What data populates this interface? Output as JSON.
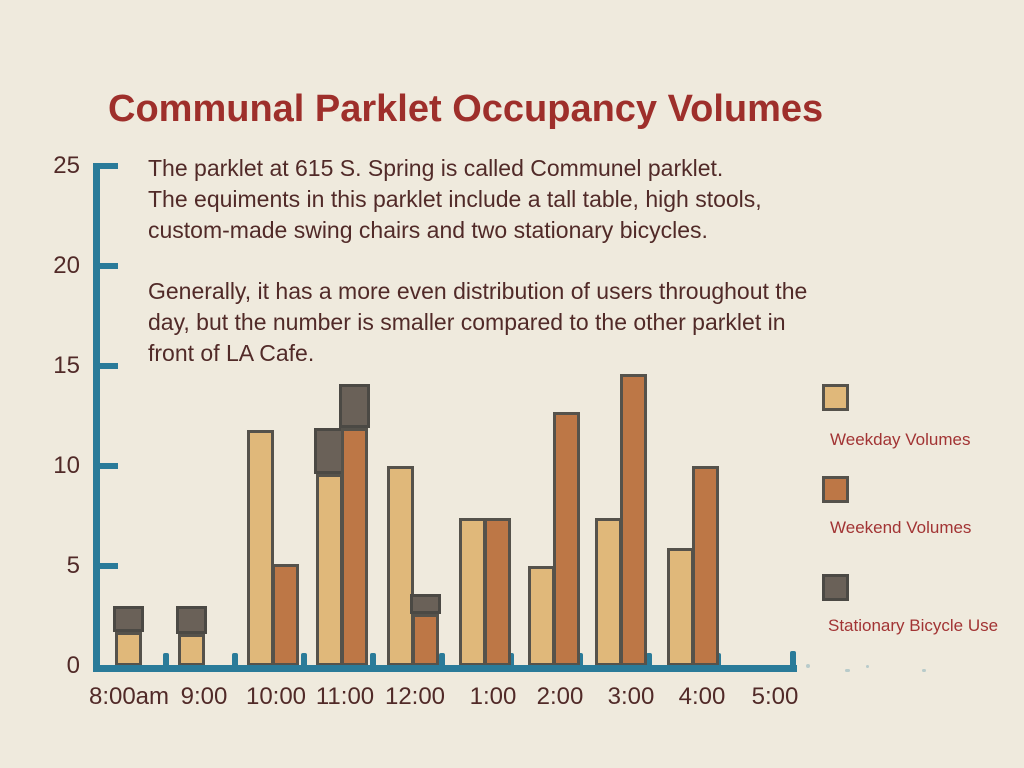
{
  "page": {
    "title": "Communal Parklet Occupancy Volumes",
    "background_color": "#efeadd",
    "title_color": "#9e2f2b"
  },
  "intro": {
    "lines": [
      "The parklet at 615 S. Spring is called Communel parklet.",
      "The equiments in this parklet include a tall table, high stools,",
      "custom-made swing chairs and two stationary bicycles."
    ]
  },
  "note": {
    "lines": [
      "Generally, it has a more even distribution of users throughout the",
      "day, but the number is smaller compared to the other parklet in",
      "front of LA Cafe."
    ]
  },
  "legend": {
    "label_color": "#a23434",
    "items": [
      {
        "label": "Weekday Volumes",
        "color": "#e0b87a",
        "border": "#55524b"
      },
      {
        "label": "Weekend Volumes",
        "color": "#bd7746",
        "border": "#55524b"
      },
      {
        "label": "Stationary Bicycle Use",
        "color": "#6a6158",
        "border": "#4b4944"
      }
    ]
  },
  "axis": {
    "color": "#2a7b99",
    "tick_label_color": "#512a28"
  },
  "chart_data": {
    "type": "bar",
    "title": "Communal Parklet Occupancy Volumes",
    "xlabel": "",
    "ylabel": "",
    "ylim": [
      0,
      25
    ],
    "yticks": [
      0,
      5,
      10,
      15,
      20,
      25
    ],
    "grid": false,
    "legend_position": "right",
    "categories": [
      "8:00am",
      "9:00",
      "10:00",
      "11:00",
      "12:00",
      "1:00",
      "2:00",
      "3:00",
      "4:00",
      "5:00"
    ],
    "series": [
      {
        "name": "Weekday Volumes",
        "color": "#e0b87a",
        "values": [
          1.7,
          1.6,
          11.8,
          9.6,
          10.0,
          7.4,
          5.0,
          7.4,
          5.9,
          0
        ]
      },
      {
        "name": "Weekend Volumes",
        "color": "#bd7746",
        "values": [
          0,
          0,
          5.1,
          11.9,
          2.6,
          7.4,
          12.7,
          14.6,
          10.0,
          0
        ]
      },
      {
        "name": "Stationary Bicycle Use",
        "color": "#6a6158",
        "note": "gray segments stacked on top of bars",
        "on_weekday": [
          1.3,
          1.4,
          0,
          2.3,
          0,
          0,
          0,
          0,
          0,
          0
        ],
        "on_weekend": [
          0,
          0,
          0,
          2.2,
          1.0,
          0,
          0,
          0,
          0,
          0
        ]
      }
    ]
  }
}
